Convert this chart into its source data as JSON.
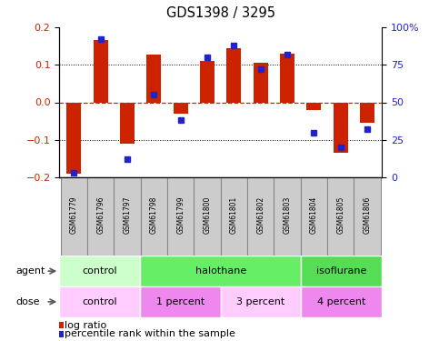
{
  "title": "GDS1398 / 3295",
  "samples": [
    "GSM61779",
    "GSM61796",
    "GSM61797",
    "GSM61798",
    "GSM61799",
    "GSM61800",
    "GSM61801",
    "GSM61802",
    "GSM61803",
    "GSM61804",
    "GSM61805",
    "GSM61806"
  ],
  "log_ratio": [
    -0.19,
    0.165,
    -0.11,
    0.127,
    -0.03,
    0.11,
    0.145,
    0.105,
    0.13,
    -0.02,
    -0.135,
    -0.055
  ],
  "percentile": [
    3,
    92,
    12,
    55,
    38,
    80,
    88,
    72,
    82,
    30,
    20,
    32
  ],
  "bar_color": "#cc2200",
  "dot_color": "#2222cc",
  "zero_line_color": "#cc2200",
  "grid_color": "#000000",
  "ylim": [
    -0.2,
    0.2
  ],
  "yticks_left": [
    -0.2,
    -0.1,
    0.0,
    0.1,
    0.2
  ],
  "yticks_right": [
    0,
    25,
    50,
    75,
    100
  ],
  "ytick_labels_right": [
    "0",
    "25",
    "50",
    "75",
    "100%"
  ],
  "agent_groups": [
    {
      "label": "control",
      "start": 0,
      "end": 3,
      "color": "#ccffcc"
    },
    {
      "label": "halothane",
      "start": 3,
      "end": 9,
      "color": "#66ee66"
    },
    {
      "label": "isoflurane",
      "start": 9,
      "end": 12,
      "color": "#55dd55"
    }
  ],
  "dose_groups": [
    {
      "label": "control",
      "start": 0,
      "end": 3,
      "color": "#ffccff"
    },
    {
      "label": "1 percent",
      "start": 3,
      "end": 6,
      "color": "#ee88ee"
    },
    {
      "label": "3 percent",
      "start": 6,
      "end": 9,
      "color": "#ffccff"
    },
    {
      "label": "4 percent",
      "start": 9,
      "end": 12,
      "color": "#ee88ee"
    }
  ],
  "legend_log_ratio": "log ratio",
  "legend_percentile": "percentile rank within the sample",
  "agent_label": "agent",
  "dose_label": "dose",
  "bar_width": 0.55,
  "sample_bg": "#cccccc",
  "sample_border": "#888888",
  "fig_bg": "#ffffff"
}
